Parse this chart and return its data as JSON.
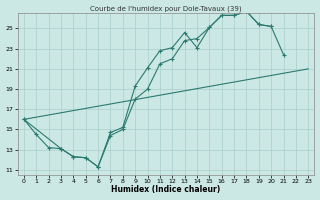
{
  "title": "Courbe de l'humidex pour Dole-Tavaux (39)",
  "xlabel": "Humidex (Indice chaleur)",
  "bg_color": "#cce8e4",
  "line_color": "#2a7a70",
  "grid_color": "#aacfcb",
  "xlim": [
    -0.5,
    23.5
  ],
  "ylim": [
    10.5,
    26.5
  ],
  "xticks": [
    0,
    1,
    2,
    3,
    4,
    5,
    6,
    7,
    8,
    9,
    10,
    11,
    12,
    13,
    14,
    15,
    16,
    17,
    18,
    19,
    20,
    21,
    22,
    23
  ],
  "yticks": [
    11,
    13,
    15,
    17,
    19,
    21,
    23,
    25
  ],
  "line1_data": [
    [
      0,
      16.0
    ],
    [
      1,
      14.5
    ],
    [
      2,
      13.2
    ],
    [
      3,
      13.1
    ],
    [
      4,
      12.3
    ],
    [
      5,
      12.2
    ],
    [
      6,
      11.3
    ],
    [
      7,
      14.7
    ],
    [
      8,
      15.2
    ],
    [
      9,
      19.3
    ],
    [
      10,
      21.1
    ],
    [
      11,
      22.8
    ],
    [
      12,
      23.1
    ],
    [
      13,
      24.6
    ],
    [
      14,
      23.1
    ],
    [
      15,
      25.1
    ],
    [
      16,
      26.3
    ],
    [
      17,
      26.3
    ],
    [
      18,
      26.7
    ],
    [
      19,
      25.4
    ],
    [
      20,
      25.2
    ],
    [
      21,
      22.4
    ]
  ],
  "line2_data": [
    [
      0,
      16.0
    ],
    [
      3,
      13.1
    ],
    [
      4,
      12.3
    ],
    [
      5,
      12.2
    ],
    [
      6,
      11.3
    ],
    [
      7,
      14.4
    ],
    [
      8,
      15.0
    ],
    [
      9,
      18.0
    ],
    [
      10,
      19.0
    ],
    [
      11,
      21.5
    ],
    [
      12,
      22.0
    ],
    [
      13,
      23.8
    ],
    [
      14,
      24.0
    ],
    [
      15,
      25.1
    ],
    [
      16,
      26.3
    ],
    [
      17,
      26.3
    ],
    [
      18,
      26.7
    ],
    [
      19,
      25.4
    ],
    [
      20,
      25.2
    ]
  ],
  "line3_data": [
    [
      0,
      16.0
    ],
    [
      23,
      21.0
    ]
  ]
}
